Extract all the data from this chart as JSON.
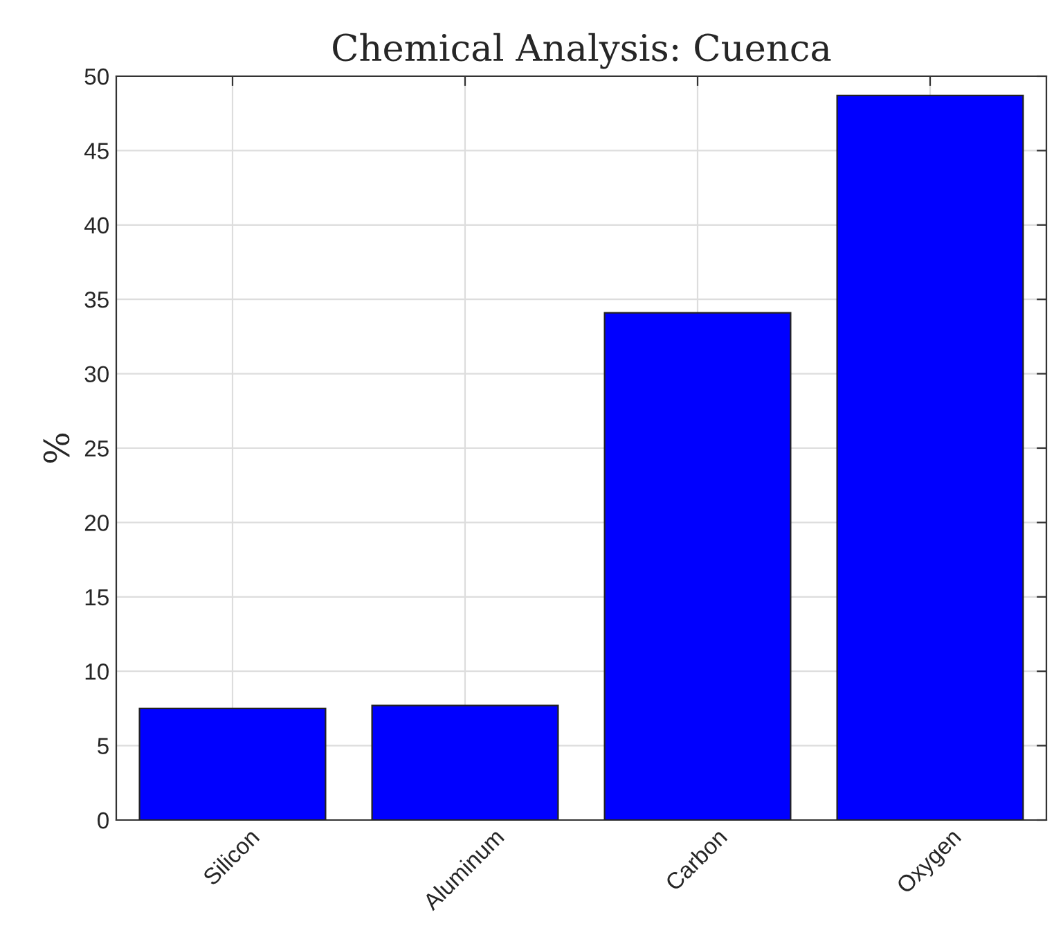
{
  "chart_data": {
    "type": "bar",
    "title": "Chemical Analysis: Cuenca",
    "ylabel": "%",
    "categories": [
      "Silicon",
      "Aluminum",
      "Carbon",
      "Oxygen"
    ],
    "values": [
      7.5,
      7.7,
      34.1,
      48.7
    ],
    "color": "#0000ff",
    "ylim": [
      0,
      50
    ],
    "yticks": [
      0,
      5,
      10,
      15,
      20,
      25,
      30,
      35,
      40,
      45,
      50
    ],
    "grid": true
  }
}
